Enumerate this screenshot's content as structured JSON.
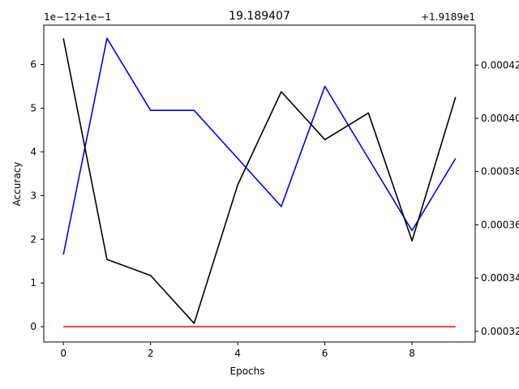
{
  "chart_data": {
    "type": "line",
    "title": "19.189407",
    "xlabel": "Epochs",
    "ylabel": "Accuracy",
    "x": [
      0,
      1,
      2,
      3,
      4,
      5,
      6,
      7,
      8,
      9
    ],
    "xlim": [
      -0.45,
      9.45
    ],
    "x_ticks": [
      0,
      2,
      4,
      6,
      8
    ],
    "left_axis": {
      "offset_text": "1e−12+1e−1",
      "ylim": [
        -0.35,
        6.9
      ],
      "ticks": [
        0,
        1,
        2,
        3,
        4,
        5,
        6
      ]
    },
    "right_axis": {
      "offset_text": "+1.9189e1",
      "ylim": [
        0.000316,
        0.000435
      ],
      "ticks": [
        0.00032,
        0.00034,
        0.00036,
        0.00038,
        0.0004,
        0.00042
      ],
      "tick_labels": [
        "0.00032",
        "0.00034",
        "0.00036",
        "0.00038",
        "0.00040",
        "0.00042"
      ]
    },
    "series": [
      {
        "name": "red",
        "axis": "left",
        "color": "#ff0000",
        "values": [
          0,
          0,
          0,
          0,
          0,
          0,
          0,
          0,
          0,
          0
        ]
      },
      {
        "name": "blue",
        "axis": "left",
        "color": "#0000ff",
        "values": [
          1.65,
          6.6,
          4.95,
          4.95,
          3.85,
          2.75,
          5.5,
          3.85,
          2.2,
          3.85
        ]
      },
      {
        "name": "black",
        "axis": "right",
        "color": "#000000",
        "values": [
          0.00043,
          0.000347,
          0.000341,
          0.000323,
          0.000375,
          0.00041,
          0.000392,
          0.000402,
          0.000354,
          0.000408
        ]
      }
    ]
  }
}
